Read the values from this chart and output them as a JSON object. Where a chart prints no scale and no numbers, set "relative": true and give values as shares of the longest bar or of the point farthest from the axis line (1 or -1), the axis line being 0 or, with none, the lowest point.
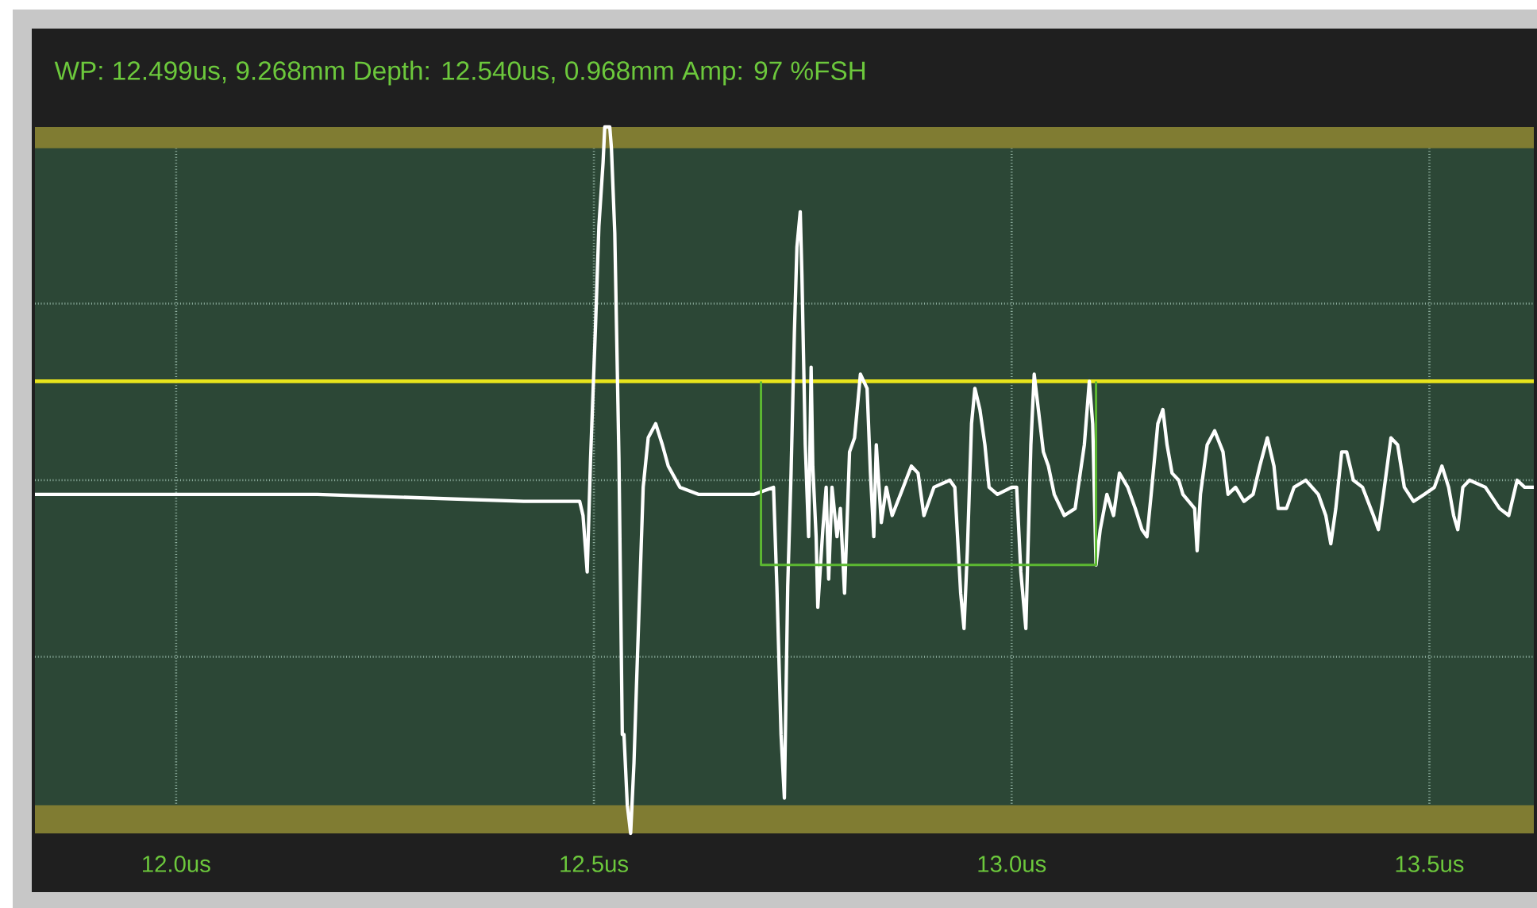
{
  "chart_data": {
    "type": "line",
    "title": "WP: 12.499us, 9.268mm  Depth: 12.540us, 0.968mm  Amp:   97 %FSH",
    "relative": true,
    "grid": true,
    "xlim": [
      11.831,
      13.625
    ],
    "xticks": [
      {
        "value": 12.0,
        "label": "12.0us"
      },
      {
        "value": 12.5,
        "label": "12.5us"
      },
      {
        "value": 13.0,
        "label": "13.0us"
      },
      {
        "value": 13.5,
        "label": "13.5us"
      }
    ],
    "ref_lines": [
      {
        "axis": "y",
        "value": 0.64,
        "color": "#e8e41c"
      }
    ],
    "bands": [
      {
        "axis": "y",
        "from": 0.97,
        "to": 1.0,
        "color": "#807c32"
      },
      {
        "axis": "y",
        "from": 0.0,
        "to": 0.04,
        "color": "#807c32"
      }
    ],
    "series": [
      {
        "color": "#ffffff",
        "x": [
          11.831,
          12.169,
          12.416,
          12.483,
          12.487,
          12.492,
          12.496,
          12.502,
          12.506,
          12.511,
          12.513,
          12.519,
          12.521,
          12.525,
          12.53,
          12.534,
          12.536,
          12.54,
          12.544,
          12.548,
          12.551,
          12.555,
          12.559,
          12.565,
          12.574,
          12.582,
          12.589,
          12.603,
          12.625,
          12.692,
          12.715,
          12.719,
          12.724,
          12.728,
          12.732,
          12.736,
          12.74,
          12.743,
          12.747,
          12.749,
          12.753,
          12.757,
          12.76,
          12.762,
          12.766,
          12.768,
          12.774,
          12.778,
          12.781,
          12.785,
          12.791,
          12.795,
          12.8,
          12.806,
          12.812,
          12.819,
          12.827,
          12.831,
          12.835,
          12.838,
          12.844,
          12.85,
          12.857,
          12.867,
          12.88,
          12.888,
          12.895,
          12.907,
          12.926,
          12.932,
          12.939,
          12.943,
          12.947,
          12.952,
          12.956,
          12.962,
          12.968,
          12.973,
          12.983,
          13.0,
          13.006,
          13.011,
          13.017,
          13.023,
          13.027,
          13.032,
          13.038,
          13.044,
          13.051,
          13.063,
          13.076,
          13.087,
          13.093,
          13.097,
          13.101,
          13.106,
          13.114,
          13.122,
          13.129,
          13.139,
          13.148,
          13.156,
          13.162,
          13.167,
          13.175,
          13.181,
          13.186,
          13.192,
          13.2,
          13.205,
          13.219,
          13.222,
          13.226,
          13.234,
          13.243,
          13.253,
          13.259,
          13.268,
          13.278,
          13.289,
          13.297,
          13.306,
          13.314,
          13.319,
          13.329,
          13.338,
          13.352,
          13.367,
          13.376,
          13.382,
          13.388,
          13.395,
          13.401,
          13.409,
          13.42,
          13.433,
          13.439,
          13.445,
          13.454,
          13.462,
          13.47,
          13.481,
          13.494,
          13.506,
          13.515,
          13.523,
          13.529,
          13.534,
          13.54,
          13.548,
          13.567,
          13.584,
          13.595,
          13.605,
          13.614,
          13.625
        ],
        "values": [
          0.48,
          0.48,
          0.47,
          0.47,
          0.45,
          0.37,
          0.53,
          0.72,
          0.86,
          0.95,
          1.0,
          1.0,
          0.97,
          0.85,
          0.53,
          0.14,
          0.14,
          0.04,
          0.0,
          0.1,
          0.21,
          0.35,
          0.49,
          0.56,
          0.58,
          0.55,
          0.52,
          0.49,
          0.48,
          0.48,
          0.49,
          0.35,
          0.14,
          0.05,
          0.35,
          0.51,
          0.71,
          0.83,
          0.88,
          0.79,
          0.55,
          0.42,
          0.66,
          0.52,
          0.42,
          0.32,
          0.43,
          0.49,
          0.36,
          0.49,
          0.42,
          0.46,
          0.34,
          0.54,
          0.56,
          0.65,
          0.63,
          0.51,
          0.42,
          0.55,
          0.44,
          0.49,
          0.45,
          0.48,
          0.52,
          0.51,
          0.45,
          0.49,
          0.5,
          0.49,
          0.34,
          0.29,
          0.4,
          0.58,
          0.63,
          0.6,
          0.55,
          0.49,
          0.48,
          0.49,
          0.49,
          0.37,
          0.29,
          0.55,
          0.65,
          0.6,
          0.54,
          0.52,
          0.48,
          0.45,
          0.46,
          0.55,
          0.64,
          0.58,
          0.38,
          0.43,
          0.48,
          0.45,
          0.51,
          0.49,
          0.46,
          0.43,
          0.42,
          0.48,
          0.58,
          0.6,
          0.55,
          0.51,
          0.5,
          0.48,
          0.46,
          0.4,
          0.48,
          0.55,
          0.57,
          0.54,
          0.48,
          0.49,
          0.47,
          0.48,
          0.52,
          0.56,
          0.52,
          0.46,
          0.46,
          0.49,
          0.5,
          0.48,
          0.45,
          0.41,
          0.46,
          0.54,
          0.54,
          0.5,
          0.49,
          0.45,
          0.43,
          0.48,
          0.56,
          0.55,
          0.49,
          0.47,
          0.48,
          0.49,
          0.52,
          0.49,
          0.45,
          0.43,
          0.49,
          0.5,
          0.49,
          0.46,
          0.45,
          0.5,
          0.49,
          0.49
        ]
      },
      {
        "type": "line",
        "color": "#5cb832",
        "x": [
          12.7,
          12.7,
          13.101,
          13.101
        ],
        "values": [
          0.64,
          0.38,
          0.38,
          0.64
        ]
      }
    ]
  }
}
